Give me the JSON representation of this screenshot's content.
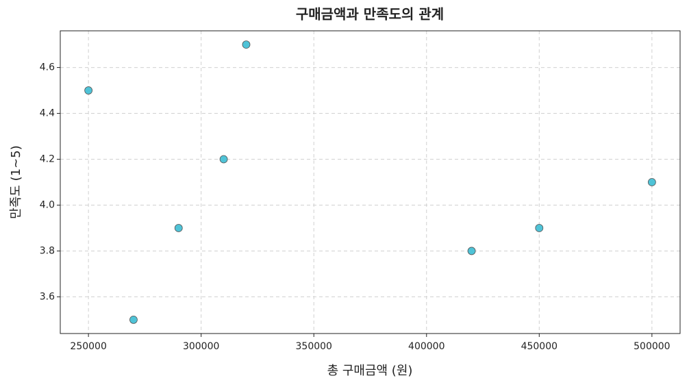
{
  "chart_data": {
    "type": "scatter",
    "title": "구매금액과 만족도의 관계",
    "x_label": "총 구매금액 (원)",
    "y_label": "만족도 (1~5)",
    "x": [
      250000,
      270000,
      290000,
      310000,
      320000,
      420000,
      450000,
      500000
    ],
    "values": [
      4.5,
      3.5,
      3.9,
      4.2,
      4.7,
      3.8,
      3.9,
      4.1
    ],
    "color": "#4fc3d7",
    "edge_color": "#555555",
    "xlim": [
      237500,
      512500
    ],
    "xticks": [
      250000,
      300000,
      350000,
      400000,
      450000,
      500000
    ],
    "ylim": [
      3.44,
      4.76
    ],
    "yticks": [
      3.6,
      3.8,
      {
        "value": 4,
        "label": "4.0"
      },
      4.2,
      4.4,
      4.6
    ],
    "grid": true
  }
}
